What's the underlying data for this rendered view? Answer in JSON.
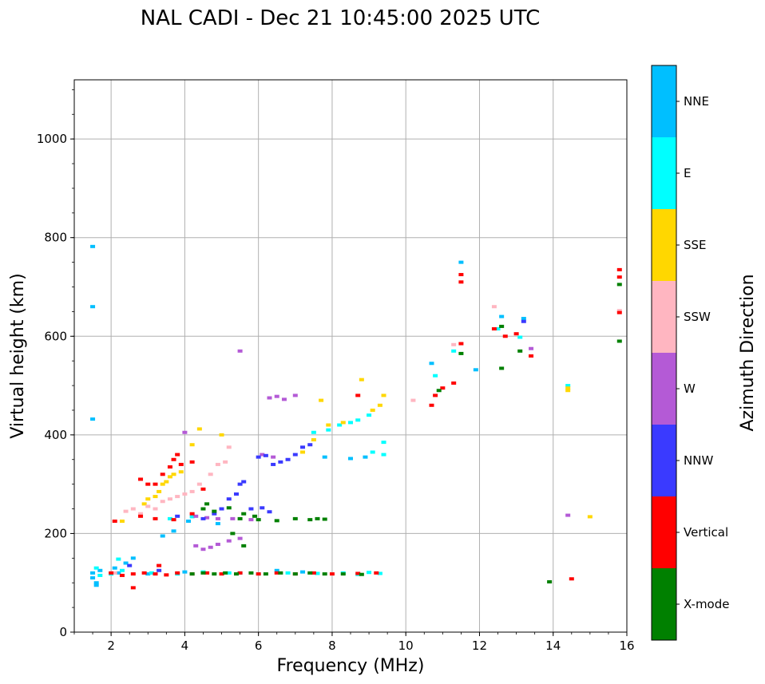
{
  "chart_data": {
    "type": "scatter",
    "title": "NAL CADI - Dec 21 10:45:00 2025 UTC",
    "xlabel": "Frequency (MHz)",
    "ylabel": "Virtual height (km)",
    "xlim": [
      1,
      16
    ],
    "ylim": [
      0,
      1120
    ],
    "xticks": [
      2,
      4,
      6,
      8,
      10,
      12,
      14,
      16
    ],
    "yticks": [
      0,
      200,
      400,
      600,
      800,
      1000
    ],
    "grid": true,
    "colorbar": {
      "label": "Azimuth Direction",
      "categories": [
        "X-mode",
        "Vertical",
        "NNW",
        "W",
        "SSW",
        "SSE",
        "E",
        "NNE"
      ],
      "colors": [
        "#008000",
        "#ff0000",
        "#3a3aff",
        "#b45ad6",
        "#ffb6c1",
        "#ffd700",
        "#00ffff",
        "#00bfff"
      ]
    },
    "series": [
      {
        "name": "NNE",
        "points": [
          [
            1.5,
            782
          ],
          [
            1.5,
            660
          ],
          [
            1.5,
            432
          ],
          [
            1.5,
            120
          ],
          [
            1.5,
            110
          ],
          [
            1.6,
            100
          ],
          [
            1.7,
            125
          ],
          [
            2.1,
            130
          ],
          [
            2.4,
            140
          ],
          [
            2.6,
            150
          ],
          [
            3.4,
            195
          ],
          [
            3.7,
            205
          ],
          [
            4.1,
            225
          ],
          [
            4.9,
            220
          ],
          [
            7.8,
            355
          ],
          [
            8.5,
            352
          ],
          [
            8.9,
            355
          ],
          [
            10.7,
            545
          ],
          [
            11.5,
            750
          ],
          [
            11.9,
            532
          ],
          [
            12.6,
            640
          ],
          [
            13.2,
            636
          ],
          [
            1.6,
            95
          ],
          [
            2.2,
            120
          ],
          [
            3.0,
            118
          ],
          [
            4.0,
            122
          ],
          [
            5.5,
            120
          ],
          [
            6.5,
            125
          ],
          [
            7.2,
            122
          ]
        ]
      },
      {
        "name": "E",
        "points": [
          [
            1.6,
            130
          ],
          [
            1.7,
            115
          ],
          [
            2.0,
            118
          ],
          [
            2.3,
            125
          ],
          [
            3.1,
            120
          ],
          [
            3.8,
            118
          ],
          [
            4.5,
            122
          ],
          [
            5.2,
            120
          ],
          [
            6.0,
            118
          ],
          [
            6.8,
            120
          ],
          [
            7.6,
            119
          ],
          [
            8.3,
            120
          ],
          [
            8.7,
            117
          ],
          [
            9.0,
            121
          ],
          [
            9.3,
            119
          ],
          [
            8.2,
            420
          ],
          [
            8.5,
            425
          ],
          [
            8.7,
            430
          ],
          [
            9.0,
            440
          ],
          [
            9.4,
            385
          ],
          [
            9.4,
            360
          ],
          [
            9.1,
            365
          ],
          [
            7.5,
            405
          ],
          [
            7.9,
            410
          ],
          [
            10.8,
            520
          ],
          [
            11.3,
            570
          ],
          [
            12.5,
            615
          ],
          [
            13.1,
            598
          ],
          [
            14.4,
            500
          ],
          [
            2.2,
            148
          ],
          [
            3.6,
            230
          ],
          [
            4.2,
            234
          ]
        ]
      },
      {
        "name": "SSE",
        "points": [
          [
            2.9,
            260
          ],
          [
            3.0,
            270
          ],
          [
            3.2,
            275
          ],
          [
            3.3,
            285
          ],
          [
            3.4,
            300
          ],
          [
            3.5,
            305
          ],
          [
            3.6,
            315
          ],
          [
            3.7,
            320
          ],
          [
            3.9,
            325
          ],
          [
            4.2,
            380
          ],
          [
            4.4,
            412
          ],
          [
            5.0,
            400
          ],
          [
            7.2,
            365
          ],
          [
            7.5,
            390
          ],
          [
            7.7,
            470
          ],
          [
            7.9,
            420
          ],
          [
            8.3,
            425
          ],
          [
            8.8,
            512
          ],
          [
            9.1,
            450
          ],
          [
            9.3,
            460
          ],
          [
            9.4,
            480
          ],
          [
            14.4,
            490
          ],
          [
            14.4,
            495
          ],
          [
            15.0,
            234
          ],
          [
            2.3,
            225
          ]
        ]
      },
      {
        "name": "SSW",
        "points": [
          [
            2.4,
            245
          ],
          [
            2.6,
            250
          ],
          [
            2.8,
            240
          ],
          [
            3.0,
            255
          ],
          [
            3.2,
            250
          ],
          [
            3.4,
            265
          ],
          [
            3.6,
            270
          ],
          [
            3.8,
            275
          ],
          [
            4.0,
            280
          ],
          [
            4.2,
            285
          ],
          [
            4.4,
            300
          ],
          [
            4.7,
            320
          ],
          [
            4.9,
            340
          ],
          [
            5.1,
            345
          ],
          [
            5.2,
            375
          ],
          [
            10.2,
            470
          ],
          [
            11.3,
            583
          ],
          [
            12.4,
            660
          ],
          [
            15.8,
            652
          ],
          [
            2.1,
            120
          ]
        ]
      },
      {
        "name": "W",
        "points": [
          [
            4.3,
            175
          ],
          [
            4.5,
            168
          ],
          [
            4.7,
            172
          ],
          [
            4.9,
            178
          ],
          [
            5.2,
            185
          ],
          [
            5.5,
            190
          ],
          [
            4.3,
            235
          ],
          [
            4.6,
            232
          ],
          [
            4.9,
            230
          ],
          [
            5.3,
            230
          ],
          [
            5.8,
            228
          ],
          [
            6.1,
            360
          ],
          [
            6.3,
            475
          ],
          [
            6.5,
            478
          ],
          [
            6.7,
            472
          ],
          [
            7.0,
            480
          ],
          [
            6.4,
            355
          ],
          [
            13.4,
            575
          ],
          [
            14.4,
            237
          ],
          [
            5.5,
            570
          ],
          [
            4.0,
            405
          ]
        ]
      },
      {
        "name": "NNW",
        "points": [
          [
            4.5,
            230
          ],
          [
            4.8,
            240
          ],
          [
            5.0,
            250
          ],
          [
            5.2,
            270
          ],
          [
            5.4,
            280
          ],
          [
            5.5,
            300
          ],
          [
            5.6,
            305
          ],
          [
            6.0,
            355
          ],
          [
            6.2,
            358
          ],
          [
            6.4,
            340
          ],
          [
            6.6,
            345
          ],
          [
            6.8,
            350
          ],
          [
            7.0,
            360
          ],
          [
            7.2,
            375
          ],
          [
            7.4,
            380
          ],
          [
            5.8,
            250
          ],
          [
            6.1,
            252
          ],
          [
            6.3,
            244
          ],
          [
            3.8,
            235
          ],
          [
            13.2,
            630
          ],
          [
            2.5,
            135
          ],
          [
            3.3,
            125
          ]
        ]
      },
      {
        "name": "Vertical",
        "points": [
          [
            2.0,
            120
          ],
          [
            2.3,
            115
          ],
          [
            2.6,
            118
          ],
          [
            2.9,
            120
          ],
          [
            3.2,
            118
          ],
          [
            3.5,
            116
          ],
          [
            3.8,
            120
          ],
          [
            4.2,
            118
          ],
          [
            4.6,
            120
          ],
          [
            5.0,
            118
          ],
          [
            5.5,
            120
          ],
          [
            6.0,
            118
          ],
          [
            6.5,
            120
          ],
          [
            7.0,
            118
          ],
          [
            7.5,
            120
          ],
          [
            8.0,
            118
          ],
          [
            8.7,
            119
          ],
          [
            9.2,
            120
          ],
          [
            2.8,
            310
          ],
          [
            3.0,
            300
          ],
          [
            3.2,
            300
          ],
          [
            3.4,
            320
          ],
          [
            3.6,
            335
          ],
          [
            3.7,
            350
          ],
          [
            3.8,
            360
          ],
          [
            3.9,
            340
          ],
          [
            4.2,
            345
          ],
          [
            4.5,
            290
          ],
          [
            2.8,
            235
          ],
          [
            3.2,
            230
          ],
          [
            3.7,
            228
          ],
          [
            4.2,
            240
          ],
          [
            2.1,
            225
          ],
          [
            10.7,
            460
          ],
          [
            10.8,
            480
          ],
          [
            11.0,
            495
          ],
          [
            11.3,
            505
          ],
          [
            11.5,
            585
          ],
          [
            11.5,
            710
          ],
          [
            11.5,
            725
          ],
          [
            12.4,
            615
          ],
          [
            12.7,
            600
          ],
          [
            13.0,
            605
          ],
          [
            13.4,
            560
          ],
          [
            15.8,
            735
          ],
          [
            15.8,
            720
          ],
          [
            15.8,
            648
          ],
          [
            14.5,
            108
          ],
          [
            8.7,
            480
          ],
          [
            3.3,
            135
          ],
          [
            2.6,
            90
          ]
        ]
      },
      {
        "name": "X-mode",
        "points": [
          [
            4.2,
            118
          ],
          [
            4.5,
            120
          ],
          [
            4.8,
            118
          ],
          [
            5.1,
            120
          ],
          [
            5.4,
            118
          ],
          [
            5.8,
            120
          ],
          [
            6.2,
            118
          ],
          [
            6.6,
            120
          ],
          [
            7.0,
            118
          ],
          [
            7.4,
            120
          ],
          [
            7.8,
            118
          ],
          [
            8.3,
            118
          ],
          [
            8.8,
            117
          ],
          [
            5.5,
            230
          ],
          [
            6.0,
            228
          ],
          [
            6.5,
            226
          ],
          [
            7.0,
            230
          ],
          [
            7.4,
            228
          ],
          [
            7.8,
            229
          ],
          [
            4.5,
            250
          ],
          [
            4.8,
            245
          ],
          [
            5.2,
            252
          ],
          [
            5.6,
            240
          ],
          [
            5.9,
            235
          ],
          [
            10.9,
            490
          ],
          [
            11.5,
            565
          ],
          [
            12.6,
            535
          ],
          [
            12.6,
            620
          ],
          [
            13.1,
            570
          ],
          [
            15.8,
            590
          ],
          [
            15.8,
            705
          ],
          [
            13.9,
            102
          ],
          [
            5.6,
            175
          ],
          [
            7.6,
            230
          ],
          [
            4.6,
            260
          ],
          [
            5.3,
            200
          ]
        ]
      }
    ]
  }
}
